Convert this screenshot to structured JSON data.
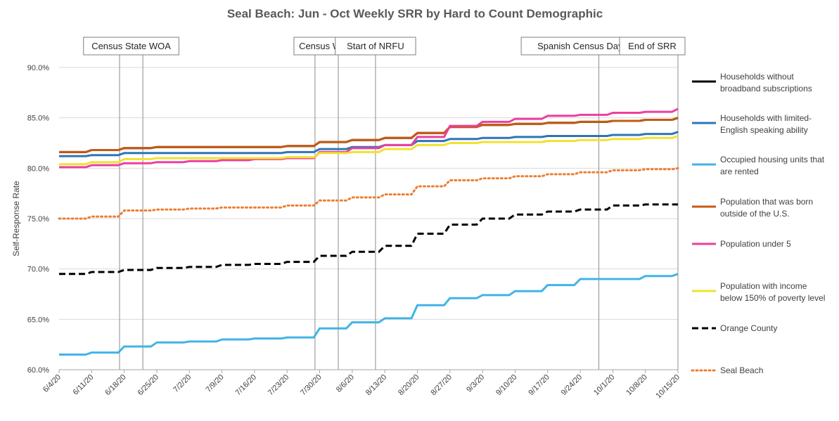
{
  "chart_data": {
    "type": "line",
    "title": "Seal Beach: Jun - Oct Weekly SRR by Hard to Count Demographic",
    "xlabel": "",
    "ylabel": "Self-Response Rate",
    "ylim": [
      60,
      90
    ],
    "y_ticks": [
      60,
      65,
      70,
      75,
      80,
      85,
      90
    ],
    "y_tick_labels": [
      "60.0%",
      "65.0%",
      "70.0%",
      "75.0%",
      "80.0%",
      "85.0%",
      "90.0%"
    ],
    "x_ticks": [
      0,
      7,
      14,
      21,
      28,
      35,
      42,
      49,
      56,
      63,
      70,
      77,
      84,
      91,
      98,
      105,
      112,
      119,
      126,
      133
    ],
    "x_tick_labels": [
      "6/4/20",
      "6/11/20",
      "6/18/20",
      "6/25/20",
      "7/2/20",
      "7/9/20",
      "7/16/20",
      "7/23/20",
      "7/30/20",
      "8/6/20",
      "8/13/20",
      "8/20/20",
      "8/27/20",
      "9/3/20",
      "9/10/20",
      "9/17/20",
      "9/24/20",
      "10/1/20",
      "10/8/20",
      "10/15/20"
    ],
    "x_range": [
      0,
      133
    ],
    "grid": "horizontal",
    "legend_position": "right",
    "annotations": [
      {
        "label": "Census State WOA",
        "x": [
          13,
          18
        ]
      },
      {
        "label": "Census WOA",
        "x": [
          55,
          60
        ]
      },
      {
        "label": "Start of NRFU",
        "x": [
          68
        ]
      },
      {
        "label": "Spanish Census Day of Action",
        "x": [
          116
        ]
      },
      {
        "label": "End of SRR",
        "x": [
          133
        ]
      }
    ],
    "series": [
      {
        "name": "Households without broadband subscriptions",
        "color": "#000000",
        "style": "solid",
        "x": [
          0,
          7,
          14,
          21,
          28,
          35,
          42,
          49,
          56,
          63,
          70,
          77,
          84,
          91,
          98,
          105,
          112,
          119,
          126,
          133
        ],
        "values": [
          81.6,
          81.8,
          82.0,
          82.1,
          82.1,
          82.1,
          82.1,
          82.2,
          82.6,
          82.8,
          83.0,
          83.5,
          84.1,
          84.3,
          84.4,
          84.5,
          84.6,
          84.7,
          84.8,
          85.0
        ]
      },
      {
        "name": "Households with limited-English speaking ability",
        "color": "#2E75B6",
        "style": "solid",
        "x": [
          0,
          7,
          14,
          21,
          28,
          35,
          42,
          49,
          56,
          63,
          70,
          77,
          84,
          91,
          98,
          105,
          112,
          119,
          126,
          133
        ],
        "values": [
          81.2,
          81.3,
          81.5,
          81.5,
          81.5,
          81.5,
          81.5,
          81.6,
          81.9,
          82.1,
          82.3,
          82.7,
          82.9,
          83.0,
          83.1,
          83.2,
          83.2,
          83.3,
          83.4,
          83.6
        ]
      },
      {
        "name": "Occupied housing units that are rented",
        "color": "#41B4E6",
        "style": "solid",
        "x": [
          0,
          7,
          14,
          21,
          28,
          35,
          42,
          49,
          56,
          63,
          70,
          77,
          84,
          91,
          98,
          105,
          112,
          119,
          126,
          133
        ],
        "values": [
          61.5,
          61.7,
          62.3,
          62.7,
          62.8,
          63.0,
          63.1,
          63.2,
          64.1,
          64.7,
          65.1,
          66.4,
          67.1,
          67.4,
          67.8,
          68.4,
          69.0,
          69.0,
          69.3,
          69.5
        ]
      },
      {
        "name": "Population that was born outside of the U.S.",
        "color": "#C55A11",
        "style": "solid",
        "x": [
          0,
          7,
          14,
          21,
          28,
          35,
          42,
          49,
          56,
          63,
          70,
          77,
          84,
          91,
          98,
          105,
          112,
          119,
          126,
          133
        ],
        "values": [
          81.6,
          81.8,
          82.0,
          82.1,
          82.1,
          82.1,
          82.1,
          82.2,
          82.6,
          82.8,
          83.0,
          83.5,
          84.1,
          84.3,
          84.4,
          84.5,
          84.6,
          84.7,
          84.8,
          85.0
        ]
      },
      {
        "name": "Population under 5",
        "color": "#EC3F9E",
        "style": "solid",
        "x": [
          0,
          7,
          14,
          21,
          28,
          35,
          42,
          49,
          56,
          63,
          70,
          77,
          84,
          91,
          98,
          105,
          112,
          119,
          126,
          133
        ],
        "values": [
          80.1,
          80.3,
          80.5,
          80.6,
          80.7,
          80.8,
          80.9,
          81.0,
          81.6,
          82.0,
          82.3,
          83.1,
          84.2,
          84.6,
          84.9,
          85.2,
          85.3,
          85.5,
          85.6,
          85.9
        ]
      },
      {
        "name": "Population with income below 150% of poverty level",
        "color": "#F2E130",
        "style": "solid",
        "x": [
          0,
          7,
          14,
          21,
          28,
          35,
          42,
          49,
          56,
          63,
          70,
          77,
          84,
          91,
          98,
          105,
          112,
          119,
          126,
          133
        ],
        "values": [
          80.4,
          80.6,
          80.9,
          81.0,
          81.0,
          81.0,
          81.0,
          81.1,
          81.5,
          81.6,
          81.9,
          82.3,
          82.5,
          82.6,
          82.6,
          82.7,
          82.8,
          82.9,
          83.0,
          83.2
        ]
      },
      {
        "name": "Orange County",
        "color": "#000000",
        "style": "dashed",
        "x": [
          0,
          7,
          14,
          21,
          28,
          35,
          42,
          49,
          56,
          63,
          70,
          77,
          84,
          91,
          98,
          105,
          112,
          119,
          126,
          133
        ],
        "values": [
          69.5,
          69.7,
          69.9,
          70.1,
          70.2,
          70.4,
          70.5,
          70.7,
          71.3,
          71.7,
          72.3,
          73.5,
          74.4,
          75.0,
          75.4,
          75.7,
          75.9,
          76.3,
          76.4,
          76.4
        ]
      },
      {
        "name": "Seal Beach",
        "color": "#ED7D31",
        "style": "dotted",
        "x": [
          0,
          7,
          14,
          21,
          28,
          35,
          42,
          49,
          56,
          63,
          70,
          77,
          84,
          91,
          98,
          105,
          112,
          119,
          126,
          133
        ],
        "values": [
          75.0,
          75.2,
          75.8,
          75.9,
          76.0,
          76.1,
          76.1,
          76.3,
          76.8,
          77.1,
          77.4,
          78.2,
          78.8,
          79.0,
          79.2,
          79.4,
          79.6,
          79.8,
          79.9,
          80.0
        ]
      }
    ]
  },
  "legend": {
    "items": [
      {
        "line1": "Households without",
        "line2": "broadband subscriptions"
      },
      {
        "line1": "Households with limited-",
        "line2": "English speaking ability"
      },
      {
        "line1": "Occupied housing units that",
        "line2": "are rented"
      },
      {
        "line1": "Population that was born",
        "line2": "outside of the U.S."
      },
      {
        "line1": "Population under 5",
        "line2": ""
      },
      {
        "line1": "Population with income",
        "line2": "below 150% of poverty level"
      },
      {
        "line1": "Orange County",
        "line2": ""
      },
      {
        "line1": "Seal Beach",
        "line2": ""
      }
    ]
  }
}
